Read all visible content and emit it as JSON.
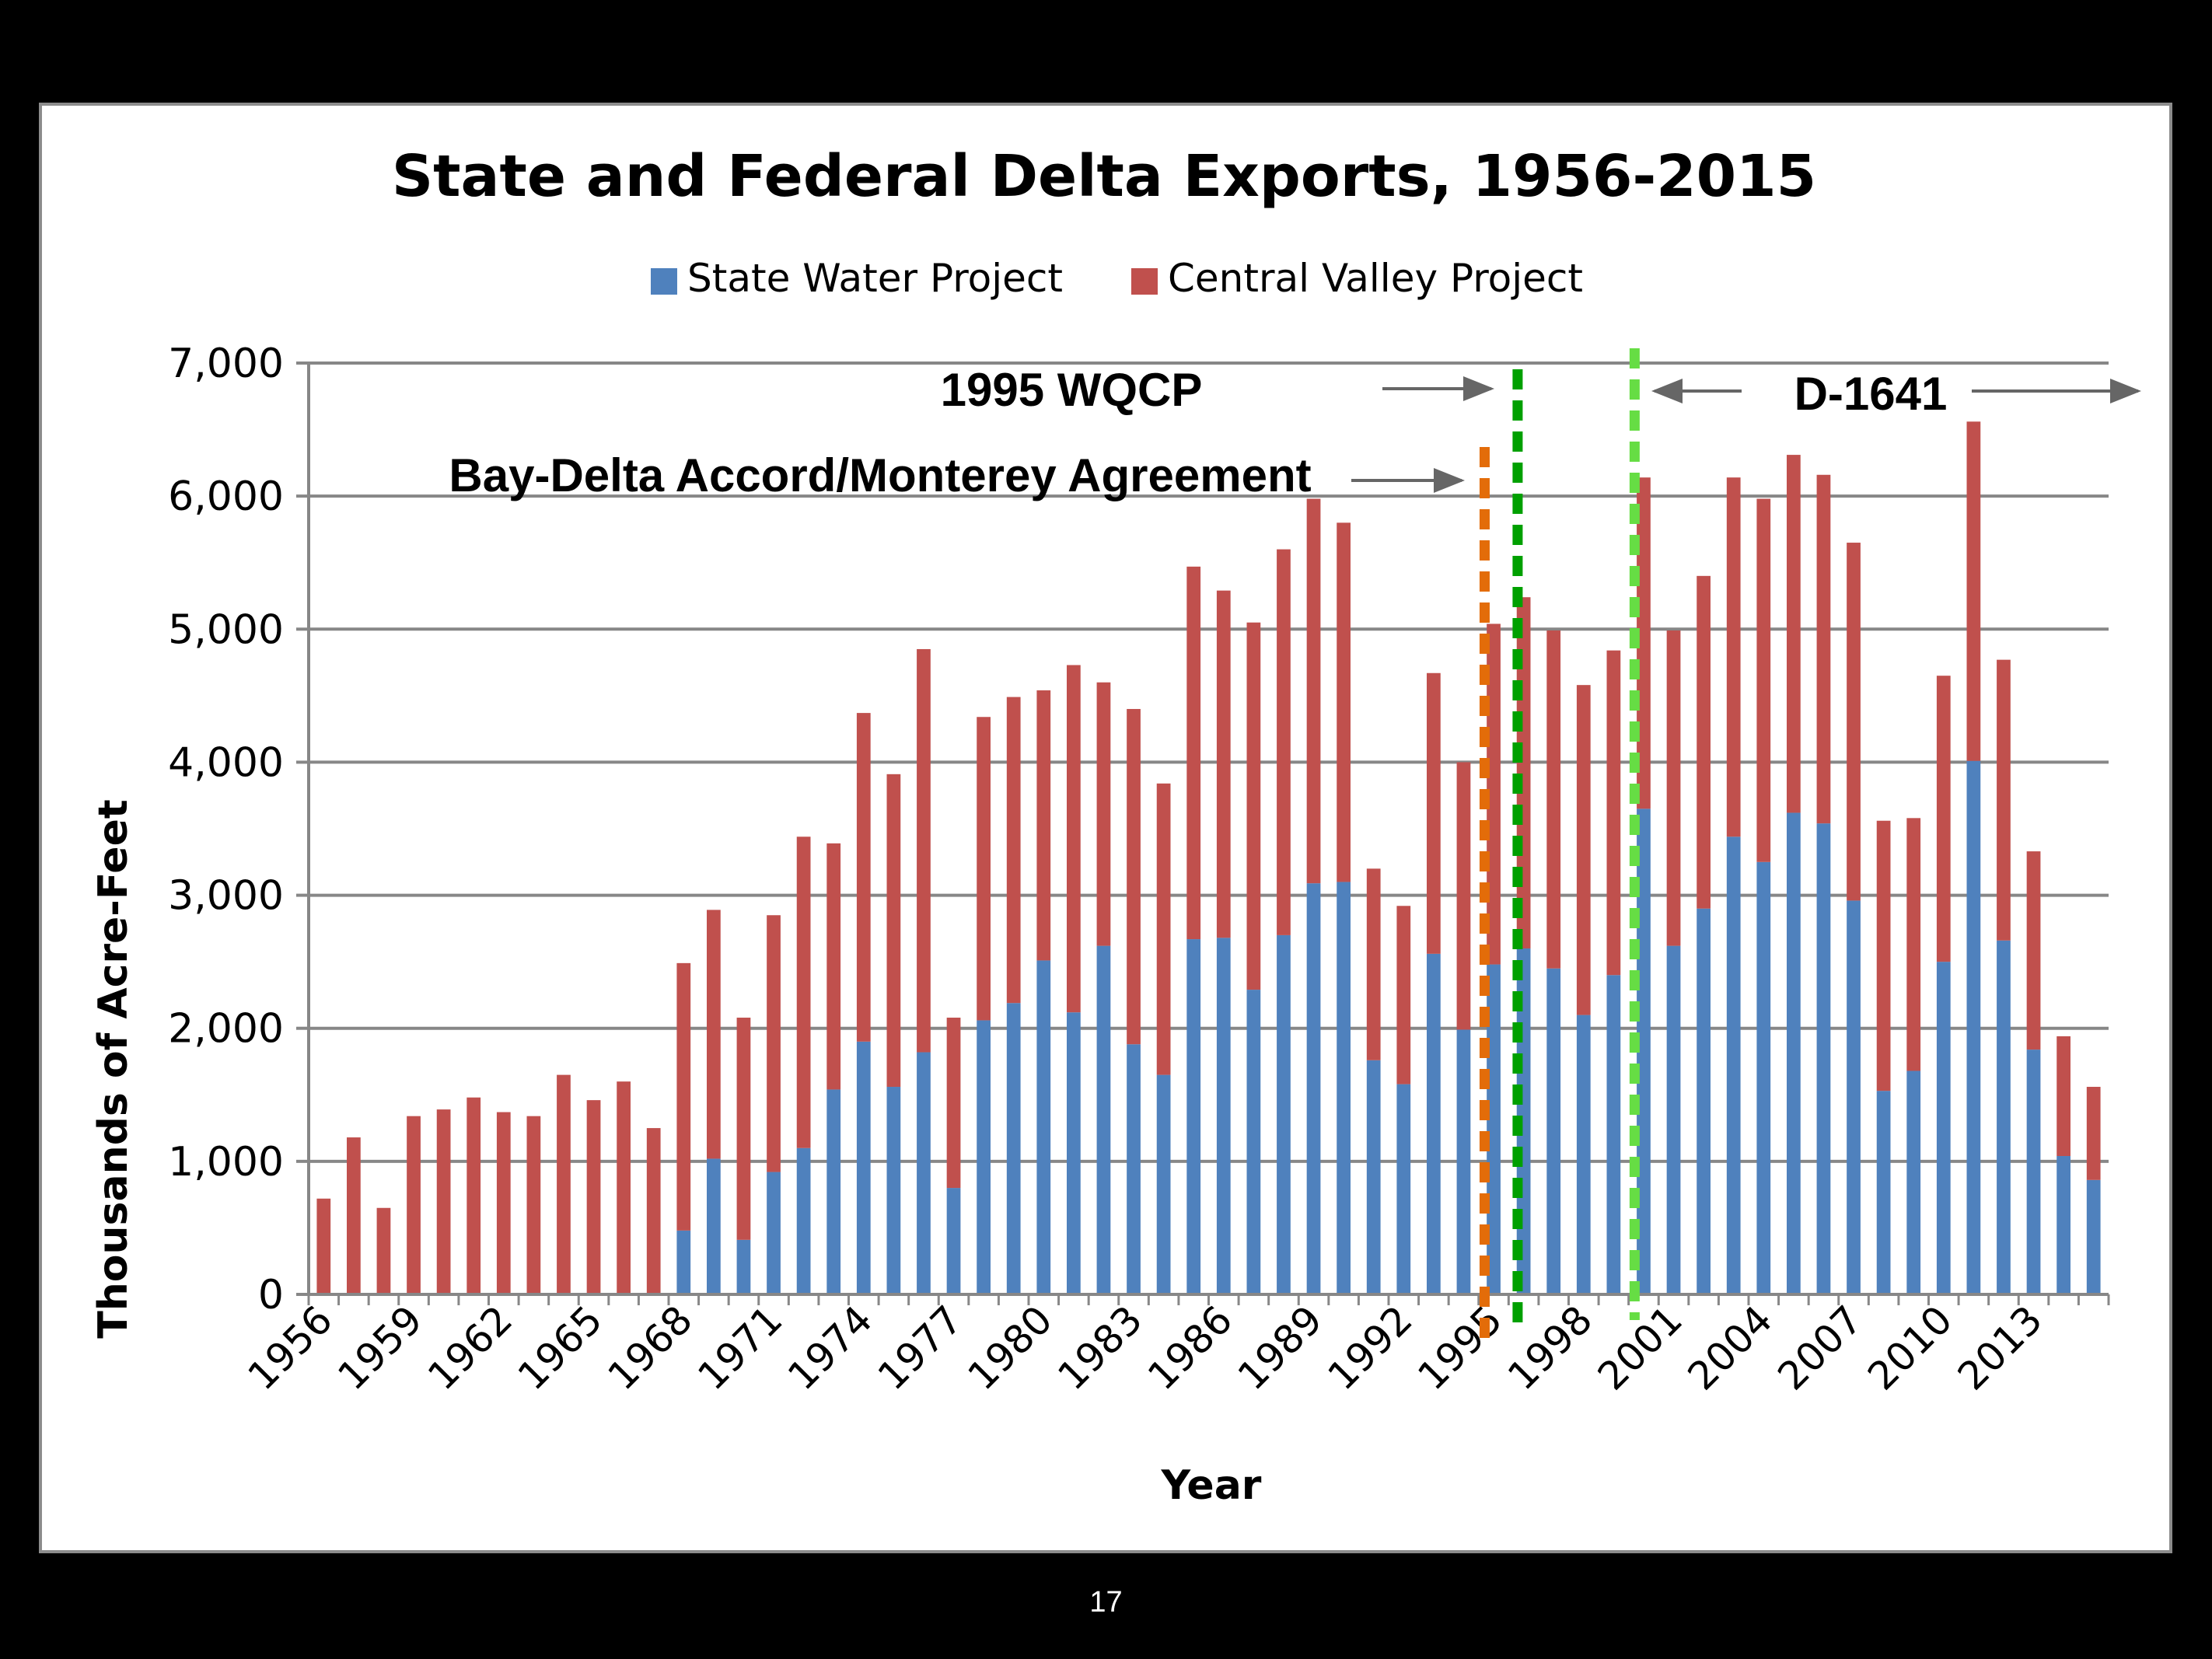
{
  "page_number": "17",
  "colors": {
    "swp": "#4F81BD",
    "cvp": "#C0504D",
    "grid": "#878787",
    "line_1994": "#E36C09",
    "line_1995": "#00A000",
    "line_2000": "#66DD44",
    "arrow": "#666666"
  },
  "annotations": {
    "bda_label": "Bay-Delta Accord/Monterey Agreement",
    "wqcp_label": "1995 WQCP",
    "d1641_label": "D-1641"
  },
  "chart_data": {
    "type": "bar",
    "stacked": true,
    "title": "State and Federal Delta Exports, 1956-2015",
    "xlabel": "Year",
    "ylabel": "Thousands of Acre-Feet",
    "ylim": [
      0,
      7000
    ],
    "yticks": [
      0,
      1000,
      2000,
      3000,
      4000,
      5000,
      6000,
      7000
    ],
    "ytick_labels": [
      "0",
      "1,000",
      "2,000",
      "3,000",
      "4,000",
      "5,000",
      "6,000",
      "7,000"
    ],
    "xtick_labels": [
      "1956",
      "1959",
      "1962",
      "1965",
      "1968",
      "1971",
      "1974",
      "1977",
      "1980",
      "1983",
      "1986",
      "1989",
      "1992",
      "1995",
      "1998",
      "2001",
      "2004",
      "2007",
      "2010",
      "2013"
    ],
    "grid": true,
    "legend_position": "top-center",
    "categories": [
      1956,
      1957,
      1958,
      1959,
      1960,
      1961,
      1962,
      1963,
      1964,
      1965,
      1966,
      1967,
      1968,
      1969,
      1970,
      1971,
      1972,
      1973,
      1974,
      1975,
      1976,
      1977,
      1978,
      1979,
      1980,
      1981,
      1982,
      1983,
      1984,
      1985,
      1986,
      1987,
      1988,
      1989,
      1990,
      1991,
      1992,
      1993,
      1994,
      1995,
      1996,
      1997,
      1998,
      1999,
      2000,
      2001,
      2002,
      2003,
      2004,
      2005,
      2006,
      2007,
      2008,
      2009,
      2010,
      2011,
      2012,
      2013,
      2014,
      2015
    ],
    "series": [
      {
        "name": "State Water Project",
        "color_key": "swp",
        "values": [
          0,
          0,
          0,
          0,
          0,
          0,
          0,
          0,
          0,
          0,
          0,
          0,
          480,
          1020,
          410,
          920,
          1100,
          1540,
          1900,
          1560,
          1820,
          800,
          2060,
          2190,
          2510,
          2120,
          2620,
          1880,
          1650,
          2670,
          2680,
          2290,
          2700,
          3090,
          3100,
          1760,
          1580,
          2560,
          1990,
          2480,
          2600,
          2450,
          2100,
          2400,
          3650,
          2620,
          2900,
          3440,
          3250,
          3620,
          3540,
          2960,
          1530,
          1680,
          2500,
          4010,
          2660,
          1840,
          1040,
          860
        ]
      },
      {
        "name": "Central Valley Project",
        "color_key": "cvp",
        "values": [
          720,
          1180,
          650,
          1340,
          1390,
          1480,
          1370,
          1340,
          1650,
          1460,
          1600,
          1250,
          2010,
          1870,
          1670,
          1930,
          2340,
          1850,
          2470,
          2350,
          3030,
          1280,
          2280,
          2300,
          2030,
          2610,
          1980,
          2520,
          2190,
          2800,
          2610,
          2760,
          2900,
          2890,
          2700,
          1440,
          1340,
          2110,
          2010,
          2560,
          2640,
          2540,
          2480,
          2440,
          2490,
          2370,
          2500,
          2700,
          2730,
          2690,
          2620,
          2690,
          2030,
          1900,
          2150,
          2550,
          2110,
          1490,
          900,
          700
        ]
      }
    ],
    "reference_lines": [
      {
        "year": 1994.7,
        "color_key": "line_1994"
      },
      {
        "year": 1995.8,
        "color_key": "line_1995"
      },
      {
        "year": 1999.7,
        "color_key": "line_2000"
      }
    ]
  }
}
